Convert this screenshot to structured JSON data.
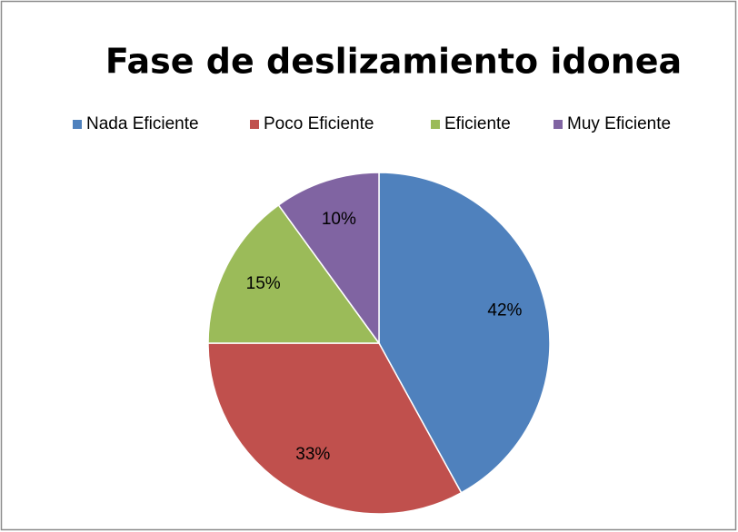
{
  "chart_data": {
    "type": "pie",
    "title": "Fase de deslizamiento idonea",
    "categories": [
      "Nada Eficiente",
      "Poco Eficiente",
      "Eficiente",
      "Muy Eficiente"
    ],
    "values": [
      42,
      33,
      15,
      10
    ],
    "value_labels": [
      "42%",
      "33%",
      "15%",
      "10%"
    ],
    "colors": [
      "#4f81bd",
      "#c0504d",
      "#9bbb59",
      "#8064a2"
    ],
    "legend": "top"
  }
}
